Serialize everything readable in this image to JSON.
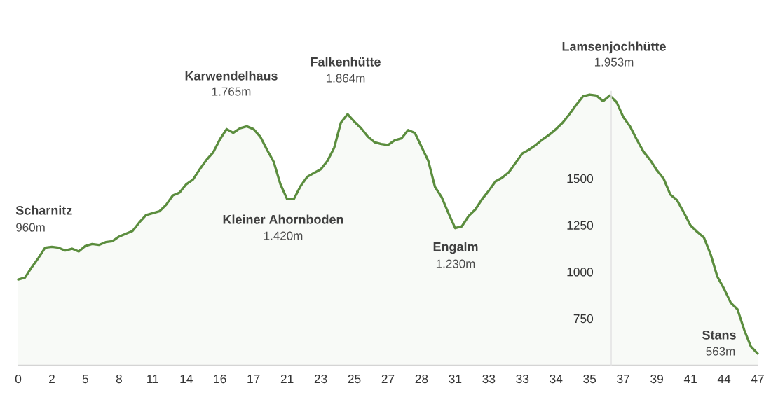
{
  "chart_data": {
    "type": "area",
    "categories": [
      "0",
      null,
      null,
      null,
      null,
      "2",
      null,
      null,
      null,
      null,
      "5",
      null,
      null,
      null,
      null,
      "8",
      null,
      null,
      null,
      null,
      "11",
      null,
      null,
      null,
      null,
      "14",
      null,
      null,
      null,
      null,
      "16",
      null,
      null,
      null,
      null,
      "17",
      null,
      null,
      null,
      null,
      "21",
      null,
      null,
      null,
      null,
      "23",
      null,
      null,
      null,
      null,
      "25",
      null,
      null,
      null,
      null,
      "27",
      null,
      null,
      null,
      null,
      "28",
      null,
      null,
      null,
      null,
      "31",
      null,
      null,
      null,
      null,
      "33",
      null,
      null,
      null,
      null,
      "33",
      null,
      null,
      null,
      null,
      "34",
      null,
      null,
      null,
      null,
      "35",
      null,
      null,
      null,
      null,
      "37",
      null,
      null,
      null,
      null,
      "39",
      null,
      null,
      null,
      null,
      "41",
      null,
      null,
      null,
      null,
      "44",
      null,
      null,
      null,
      null,
      "47"
    ],
    "values": [
      960,
      970,
      1025,
      1075,
      1130,
      1135,
      1130,
      1115,
      1125,
      1110,
      1140,
      1150,
      1145,
      1160,
      1165,
      1190,
      1205,
      1220,
      1265,
      1305,
      1315,
      1325,
      1360,
      1410,
      1425,
      1470,
      1495,
      1550,
      1600,
      1640,
      1710,
      1765,
      1745,
      1770,
      1780,
      1765,
      1725,
      1655,
      1590,
      1470,
      1390,
      1390,
      1460,
      1510,
      1530,
      1550,
      1595,
      1665,
      1800,
      1845,
      1805,
      1770,
      1725,
      1695,
      1685,
      1680,
      1705,
      1715,
      1760,
      1745,
      1670,
      1595,
      1455,
      1400,
      1315,
      1235,
      1245,
      1300,
      1335,
      1390,
      1435,
      1485,
      1505,
      1535,
      1585,
      1635,
      1655,
      1680,
      1710,
      1735,
      1765,
      1800,
      1845,
      1895,
      1940,
      1950,
      1945,
      1915,
      1945,
      1910,
      1830,
      1780,
      1710,
      1645,
      1600,
      1545,
      1500,
      1415,
      1385,
      1320,
      1250,
      1215,
      1185,
      1095,
      975,
      910,
      835,
      800,
      690,
      600,
      563
    ],
    "color": "#5b8d3e",
    "ylim": [
      500,
      1970
    ],
    "yticks": [
      750,
      1000,
      1250,
      1500
    ],
    "annotations": [
      "Scharnitz",
      "960m",
      "Karwendelhaus",
      "1.765m",
      "Kleiner Ahornboden",
      "1.420m",
      "Falkenhütte",
      "1.864m",
      "Engalm",
      "1.230m",
      "Lamsenjochhütte",
      "1.953m",
      "Stans",
      "563m"
    ]
  }
}
